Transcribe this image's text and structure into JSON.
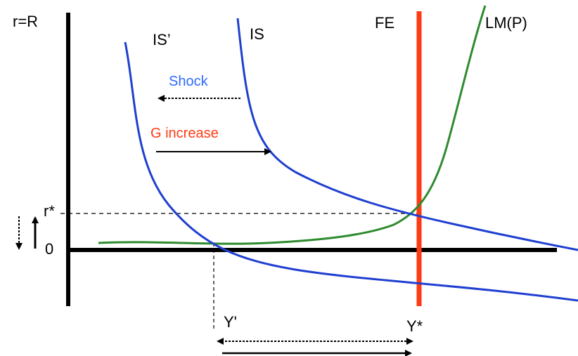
{
  "diagram": {
    "axis_label_y": "r=R",
    "origin_label": "0",
    "r_star_label": "r*",
    "y_star_label": "Y*",
    "y_prime_label": "Y'",
    "curves": {
      "is_label": "IS",
      "is_prime_label": "IS’",
      "fe_label": "FE",
      "lm_label": "LM(P)"
    },
    "annotations": {
      "shock_label": "Shock",
      "g_increase_label": "G increase"
    },
    "colors": {
      "is": "#1f3fd0",
      "lm": "#2e8b2e",
      "fe": "#ff3a14",
      "shock_text": "#2f6bff",
      "g_text": "#ff3a14",
      "axes": "#000000"
    }
  }
}
